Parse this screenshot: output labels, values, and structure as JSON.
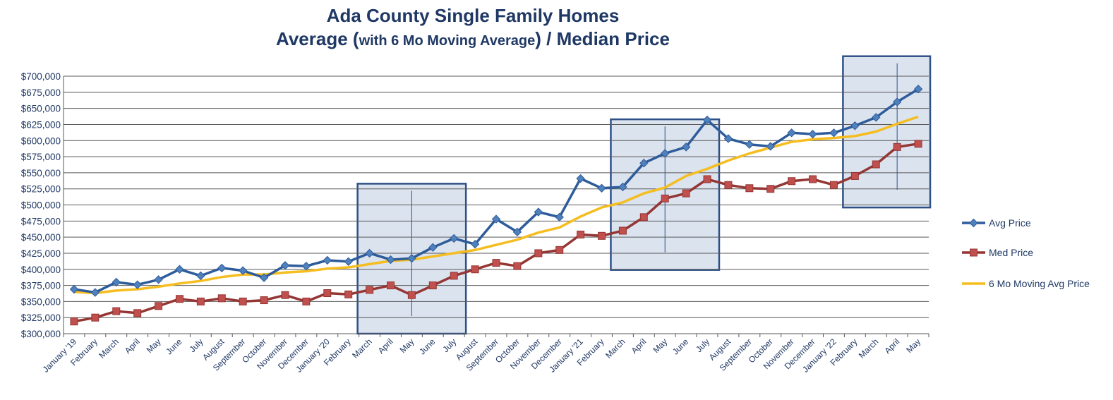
{
  "title": {
    "line1": "Ada County Single Family Homes",
    "line2_pre": "Average (",
    "line2_small": "with 6 Mo Moving Average",
    "line2_post": ") / Median Price"
  },
  "colors": {
    "avg": "#2e5c9a",
    "avg_marker": "#4f81bd",
    "med": "#943634",
    "med_marker": "#c0504d",
    "moving": "#f5bd1f",
    "grid": "#595959",
    "text": "#1f3864",
    "highlight_fill": "#dbe3ef",
    "highlight_stroke": "#2e5087"
  },
  "chart_data": {
    "type": "line",
    "title": "Ada County Single Family Homes Average (with 6 Mo Moving Average) / Median Price",
    "xlabel": "",
    "ylabel": "",
    "ylim": [
      300000,
      700000
    ],
    "yticks": [
      300000,
      325000,
      350000,
      375000,
      400000,
      425000,
      450000,
      475000,
      500000,
      525000,
      550000,
      575000,
      600000,
      625000,
      650000,
      675000,
      700000
    ],
    "ytick_labels": [
      "$300,000",
      "$325,000",
      "$350,000",
      "$375,000",
      "$400,000",
      "$425,000",
      "$450,000",
      "$475,000",
      "$500,000",
      "$525,000",
      "$550,000",
      "$575,000",
      "$600,000",
      "$625,000",
      "$650,000",
      "$675,000",
      "$700,000"
    ],
    "categories": [
      "January '19",
      "February",
      "March",
      "April",
      "May",
      "June",
      "July",
      "August",
      "September",
      "October",
      "November",
      "December",
      "January '20",
      "February",
      "March",
      "April",
      "May",
      "June",
      "July",
      "August",
      "September",
      "October",
      "November",
      "December",
      "January '21",
      "February",
      "March",
      "April",
      "May",
      "June",
      "July",
      "August",
      "September",
      "October",
      "November",
      "December",
      "January '22",
      "February",
      "March",
      "April",
      "May"
    ],
    "grid": true,
    "legend_position": "right",
    "series": [
      {
        "name": "Avg Price",
        "marker": "diamond",
        "values": [
          369000,
          364000,
          380000,
          376000,
          384000,
          400000,
          390000,
          402000,
          398000,
          387000,
          406000,
          405000,
          414000,
          412000,
          425000,
          415000,
          417000,
          434000,
          448000,
          439000,
          478000,
          458000,
          489000,
          481000,
          541000,
          526000,
          528000,
          565000,
          580000,
          590000,
          632000,
          603000,
          594000,
          591000,
          612000,
          610000,
          612000,
          623000,
          636000,
          660000,
          680000
        ]
      },
      {
        "name": "Med Price",
        "marker": "square",
        "values": [
          319000,
          325000,
          335000,
          332000,
          343000,
          354000,
          350000,
          355000,
          350000,
          352000,
          360000,
          350000,
          363000,
          361000,
          368000,
          375000,
          360000,
          375000,
          390000,
          400000,
          410000,
          405000,
          425000,
          430000,
          454000,
          452000,
          460000,
          481000,
          510000,
          518000,
          540000,
          531000,
          526000,
          525000,
          537000,
          540000,
          531000,
          545000,
          563000,
          590000,
          595000
        ]
      },
      {
        "name": "6 Mo Moving Avg Price",
        "marker": "none",
        "values": [
          365000,
          363000,
          367000,
          369000,
          373000,
          378000,
          382000,
          388000,
          392000,
          392000,
          395000,
          397000,
          401000,
          403000,
          408000,
          413000,
          415000,
          420000,
          425000,
          430000,
          438000,
          446000,
          457000,
          465000,
          482000,
          496000,
          504000,
          518000,
          527000,
          545000,
          556000,
          569000,
          580000,
          589000,
          598000,
          602000,
          604000,
          607000,
          614000,
          626000,
          637000
        ]
      }
    ],
    "highlight_ranges": [
      {
        "from": "March",
        "to": "July",
        "start_index": 14,
        "end_index": 18,
        "ymin": 300000,
        "ymax": 533000
      },
      {
        "from": "March",
        "to": "July",
        "start_index": 26,
        "end_index": 30,
        "ymin": 399000,
        "ymax": 633000
      },
      {
        "from": "February",
        "to": "May",
        "start_index": 37,
        "end_index": 40,
        "ymin": 496000,
        "ymax": 731000
      }
    ]
  }
}
